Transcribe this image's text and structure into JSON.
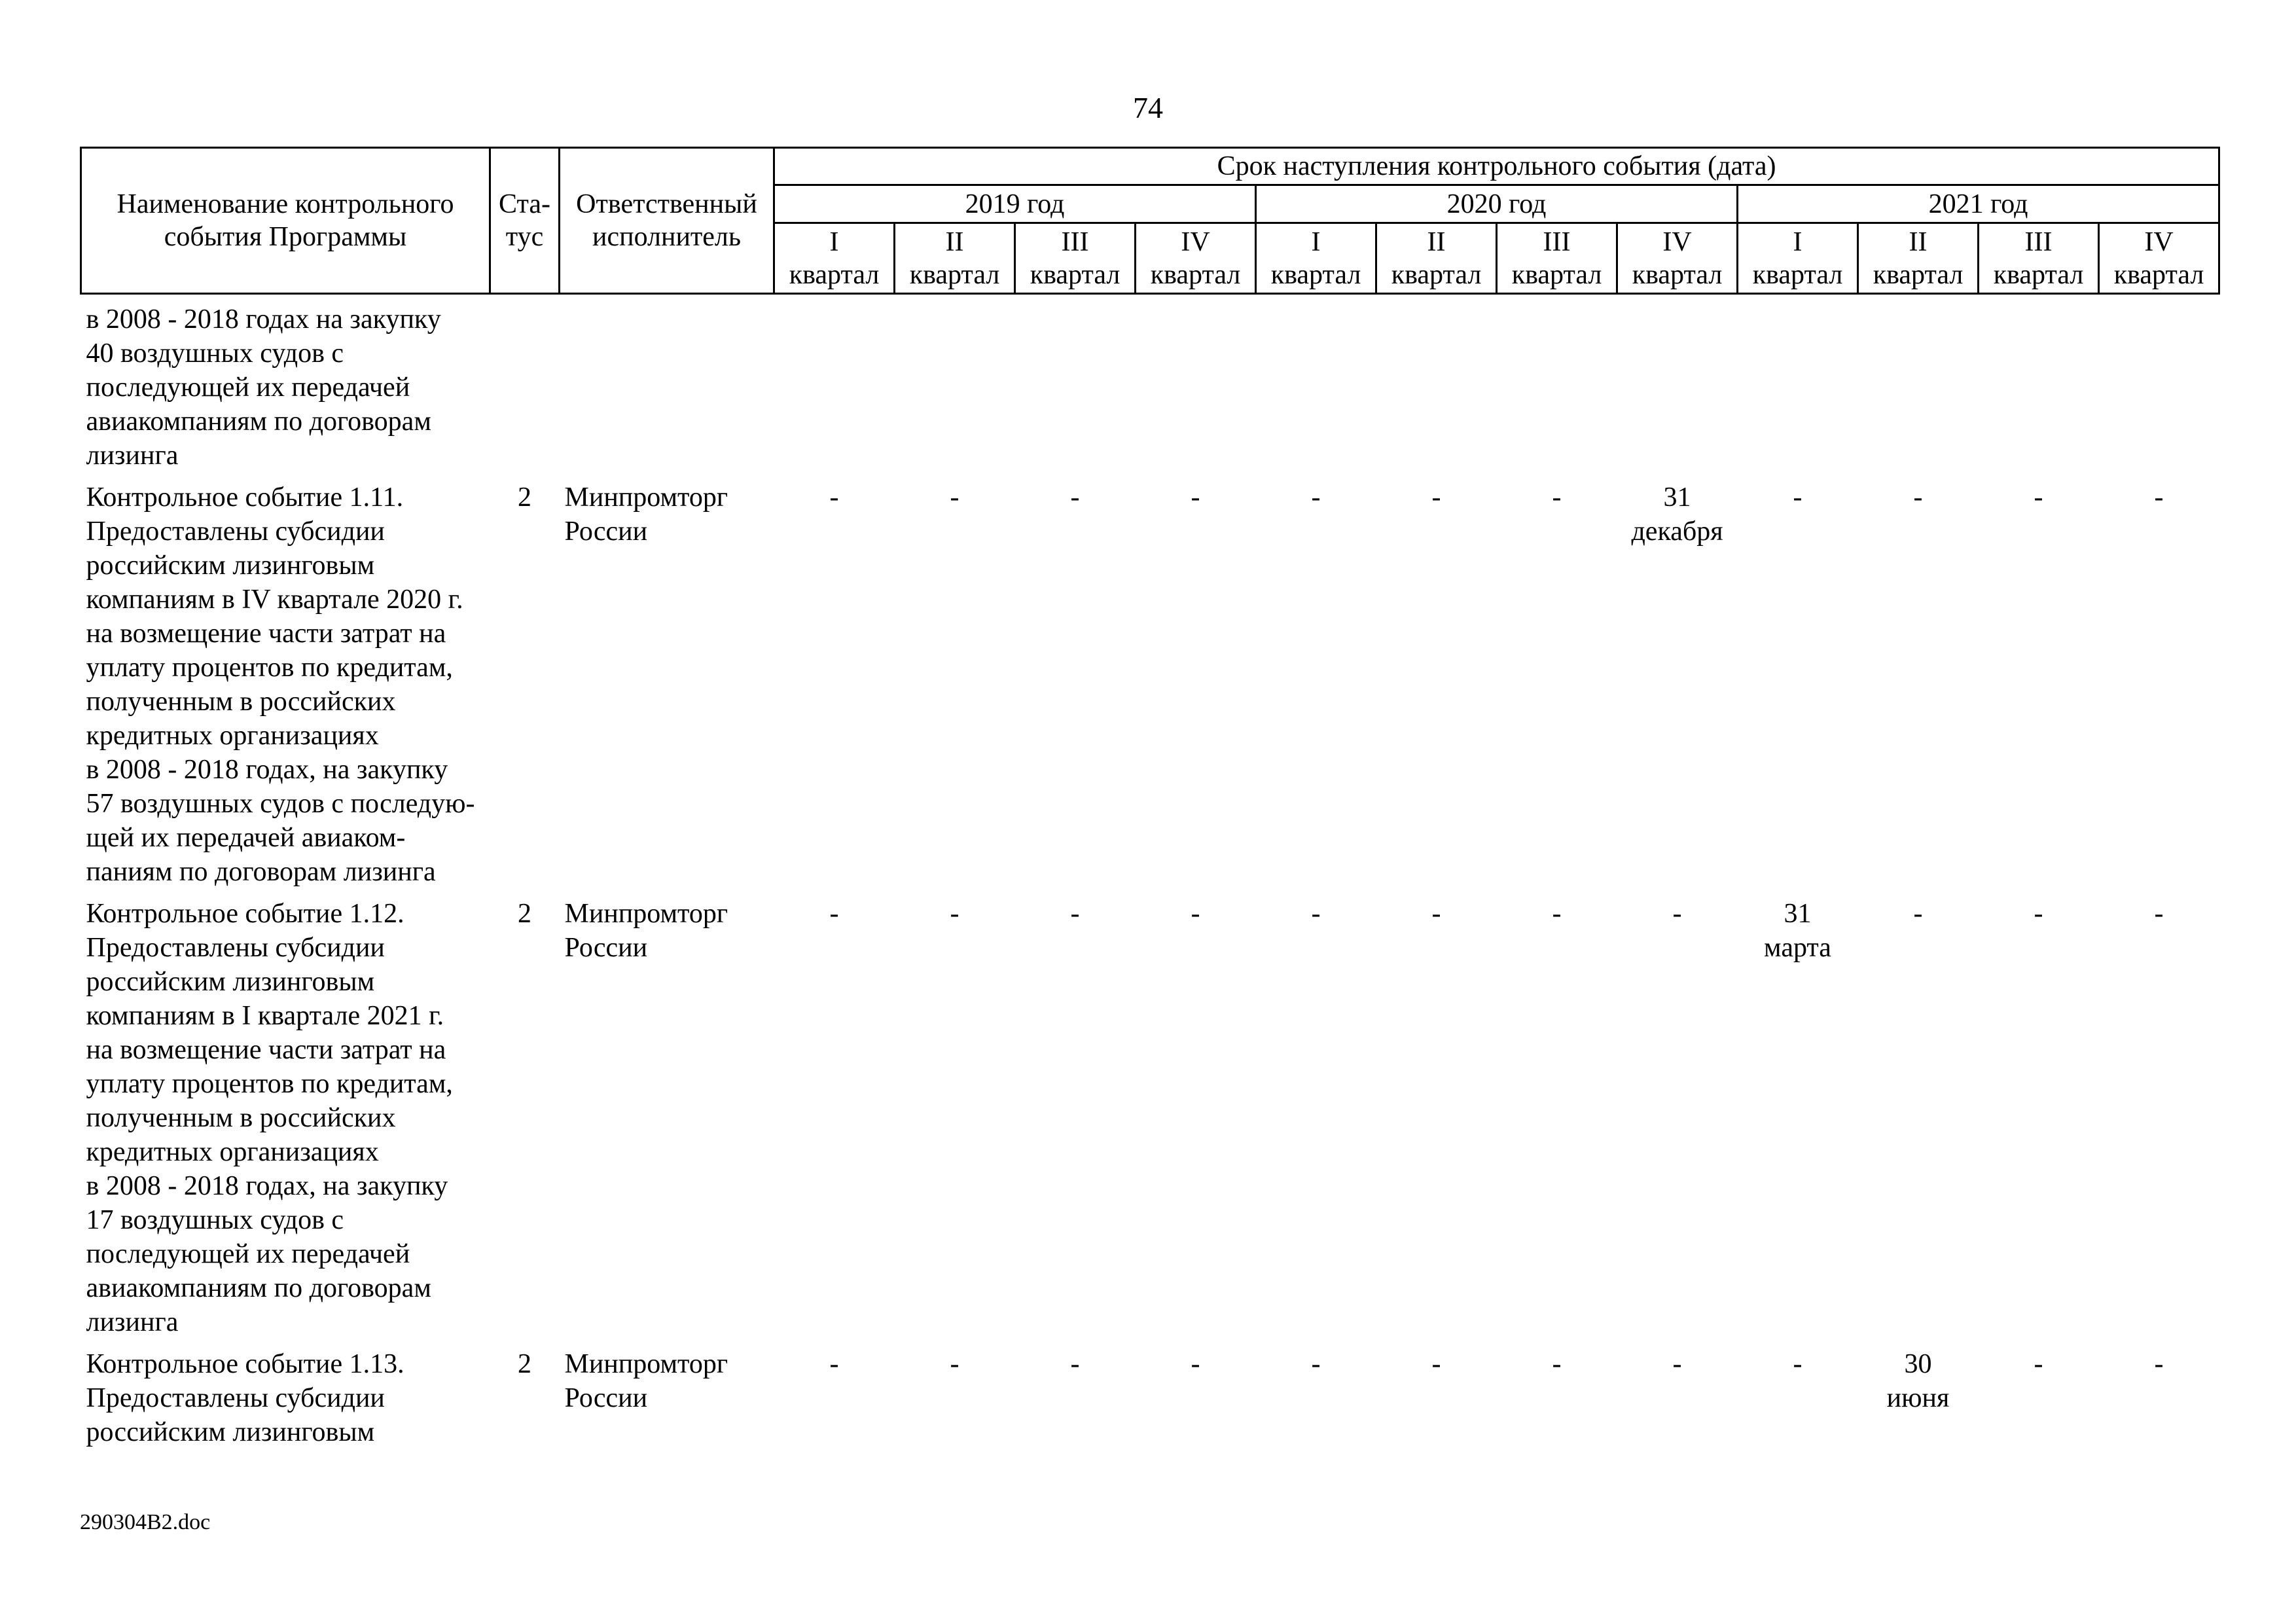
{
  "page": {
    "number": "74",
    "footer": "290304B2.doc"
  },
  "table": {
    "header": {
      "name_column": "Наименование контрольного\nсобытия Программы",
      "status_column": "Ста-\nтус",
      "executor_column": "Ответственный\nисполнитель",
      "date_group": "Срок наступления контрольного события (дата)",
      "years": [
        "2019 год",
        "2020 год",
        "2021 год"
      ],
      "quarters": [
        "I",
        "II",
        "III",
        "IV"
      ],
      "quarter_label": "квартал"
    },
    "rows": [
      {
        "name_lines": [
          "в 2008 - 2018 годах на закупку",
          "40 воздушных судов с",
          "последующей их передачей",
          "авиакомпаниям по договорам",
          "лизинга"
        ],
        "status": "",
        "executor": "",
        "quarters": [
          "",
          "",
          "",
          "",
          "",
          "",
          "",
          "",
          "",
          "",
          "",
          ""
        ]
      },
      {
        "name_lines": [
          "Контрольное событие 1.11.",
          "Предоставлены субсидии",
          "российским лизинговым",
          "компаниям в IV квартале 2020 г.",
          "на возмещение части затрат на",
          "уплату процентов по кредитам,",
          "полученным в российских",
          "кредитных организациях",
          "в 2008 - 2018 годах, на закупку",
          "57 воздушных судов с последую-",
          "щей их передачей авиаком-",
          "паниям по договорам лизинга"
        ],
        "status": "2",
        "executor": "Минпромторг\nРоссии",
        "quarters": [
          "-",
          "-",
          "-",
          "-",
          "-",
          "-",
          "-",
          "31\nдекабря",
          "-",
          "-",
          "-",
          "-"
        ]
      },
      {
        "name_lines": [
          "Контрольное событие 1.12.",
          "Предоставлены субсидии",
          "российским лизинговым",
          "компаниям в I квартале 2021 г.",
          "на возмещение части затрат на",
          "уплату процентов по кредитам,",
          "полученным в российских",
          "кредитных организациях",
          "в 2008 - 2018 годах, на закупку",
          "17 воздушных судов с",
          "последующей их передачей",
          "авиакомпаниям по договорам",
          "лизинга"
        ],
        "status": "2",
        "executor": "Минпромторг\nРоссии",
        "quarters": [
          "-",
          "-",
          "-",
          "-",
          "-",
          "-",
          "-",
          "-",
          "31\nмарта",
          "-",
          "-",
          "-"
        ]
      },
      {
        "name_lines": [
          "Контрольное событие 1.13.",
          "Предоставлены субсидии",
          "российским лизинговым"
        ],
        "status": "2",
        "executor": "Минпромторг\nРоссии",
        "quarters": [
          "-",
          "-",
          "-",
          "-",
          "-",
          "-",
          "-",
          "-",
          "-",
          "30\nиюня",
          "-",
          "-"
        ]
      }
    ]
  }
}
